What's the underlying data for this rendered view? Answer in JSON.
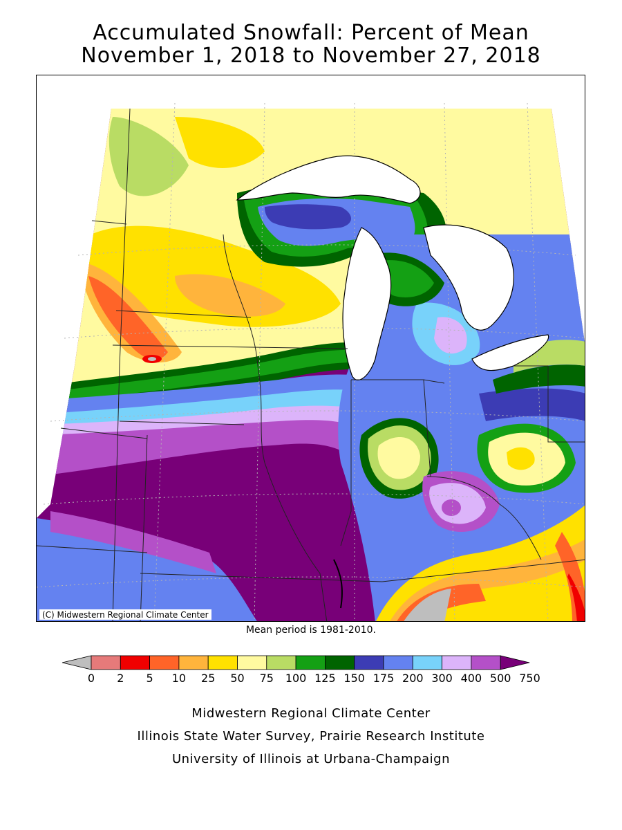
{
  "title": {
    "line1": "Accumulated Snowfall: Percent of Mean",
    "line2": "November 1, 2018 to November 27, 2018"
  },
  "map": {
    "copyright": "(C) Midwestern Regional Climate Center",
    "mean_period_note": "Mean period is 1981-2010."
  },
  "legend": {
    "labels": [
      "0",
      "2",
      "5",
      "10",
      "25",
      "50",
      "75",
      "100",
      "125",
      "150",
      "175",
      "200",
      "300",
      "400",
      "500",
      "750"
    ],
    "colors": [
      "#bebebe",
      "#e67a7a",
      "#f00000",
      "#ff6428",
      "#ffb43c",
      "#ffe100",
      "#fffaa0",
      "#b9dc64",
      "#14a014",
      "#006400",
      "#3c3cb4",
      "#6482f0",
      "#78d2fa",
      "#dcb4fa",
      "#b450c8",
      "#780078"
    ]
  },
  "footer": {
    "line1": "Midwestern Regional Climate Center",
    "line2": "Illinois State Water Survey, Prairie Research Institute",
    "line3": "University of Illinois at Urbana-Champaign"
  }
}
